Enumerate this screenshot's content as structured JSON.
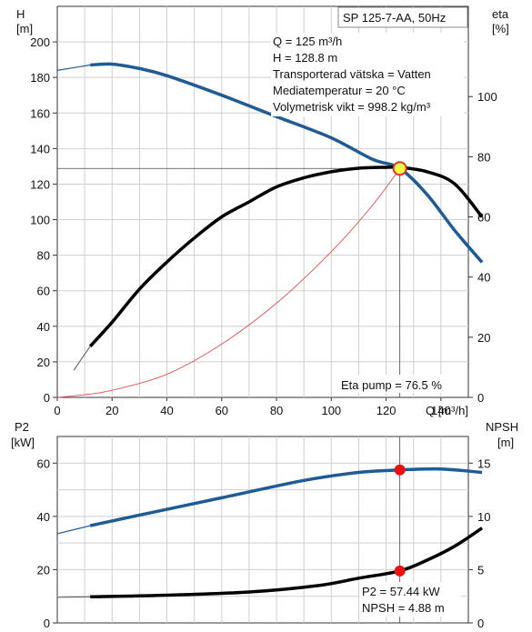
{
  "top_chart": {
    "left_axis": {
      "name": "H",
      "unit": "[m]",
      "ticks": [
        "0",
        "20",
        "40",
        "60",
        "80",
        "100",
        "120",
        "140",
        "160",
        "180",
        "200"
      ]
    },
    "right_axis": {
      "name": "eta",
      "unit": "[%]",
      "ticks": [
        "0",
        "20",
        "40",
        "60",
        "80",
        "100"
      ]
    },
    "x_axis": {
      "label": "Q [m³/h]",
      "ticks": [
        "0",
        "20",
        "40",
        "60",
        "80",
        "100",
        "120",
        "140"
      ]
    },
    "title_box": "SP 125-7-AA, 50Hz",
    "info_lines": [
      "Q = 125 m³/h",
      "H = 128.8 m",
      "Transporterad vätska = Vatten",
      "Mediatemperatur = 20 °C",
      "Volymetrisk vikt = 998.2 kg/m³"
    ],
    "eta_note": "Eta pump = 76.5 %"
  },
  "bottom_chart": {
    "left_axis": {
      "name": "P2",
      "unit": "[kW]",
      "ticks": [
        "0",
        "20",
        "40",
        "60"
      ]
    },
    "right_axis": {
      "name": "NPSH",
      "unit": "[m]",
      "ticks": [
        "0",
        "5",
        "10",
        "15"
      ]
    },
    "info_lines": [
      "P2 = 57.44 kW",
      "NPSH = 4.88 m"
    ]
  },
  "colors": {
    "head": "#1f5b95",
    "eta": "#000000",
    "system": "#e05050",
    "p2": "#1f5b95",
    "npsh": "#000000",
    "marker": "#ee1111",
    "duty_fill": "#ffff44"
  },
  "chart_data": [
    {
      "type": "line",
      "xlabel": "Q [m³/h]",
      "ylabel": "H [m]",
      "y2label": "eta [%]",
      "xlim": [
        0,
        150
      ],
      "ylim": [
        0,
        220
      ],
      "y2lim": [
        0,
        130
      ],
      "duty_point": {
        "x": 125,
        "y": 128.8
      },
      "series": [
        {
          "axis": "y",
          "points": [
            [
              0,
              184
            ],
            [
              12,
              187
            ],
            [
              20,
              187.5
            ],
            [
              30,
              185
            ],
            [
              40,
              181
            ],
            [
              60,
              170
            ],
            [
              80,
              158
            ],
            [
              100,
              146
            ],
            [
              115,
              134
            ],
            [
              125,
              128.8
            ],
            [
              135,
              114
            ],
            [
              145,
              94
            ],
            [
              155,
              76
            ]
          ]
        },
        {
          "axis": "y",
          "points": [
            [
              0,
              0
            ],
            [
              10,
              1.5
            ],
            [
              20,
              4
            ],
            [
              40,
              13
            ],
            [
              60,
              30
            ],
            [
              80,
              53
            ],
            [
              100,
              82
            ],
            [
              115,
              108
            ],
            [
              125,
              128.8
            ]
          ]
        },
        {
          "axis": "y2",
          "points": [
            [
              6,
              9
            ],
            [
              12,
              17
            ],
            [
              20,
              25
            ],
            [
              30,
              36
            ],
            [
              40,
              45
            ],
            [
              50,
              53
            ],
            [
              60,
              60
            ],
            [
              70,
              65
            ],
            [
              80,
              70
            ],
            [
              90,
              73
            ],
            [
              100,
              75
            ],
            [
              110,
              76.2
            ],
            [
              120,
              76.5
            ],
            [
              125,
              76.5
            ],
            [
              135,
              75
            ],
            [
              145,
              71
            ],
            [
              155,
              60
            ]
          ]
        }
      ],
      "markers": [
        {
          "axis": "y2",
          "x": 125,
          "y": 76.5
        }
      ]
    },
    {
      "type": "line",
      "ylabel": "P2 [kW]",
      "y2label": "NPSH [m]",
      "xlim": [
        0,
        150
      ],
      "ylim": [
        0,
        70
      ],
      "y2lim": [
        0,
        17.5
      ],
      "series": [
        {
          "axis": "y",
          "points": [
            [
              0,
              33.5
            ],
            [
              12,
              36.5
            ],
            [
              30,
              40.5
            ],
            [
              60,
              47
            ],
            [
              90,
              53.5
            ],
            [
              110,
              56.5
            ],
            [
              125,
              57.44
            ],
            [
              140,
              57.8
            ],
            [
              155,
              56.5
            ]
          ]
        },
        {
          "axis": "y2",
          "points": [
            [
              0,
              2.4
            ],
            [
              12,
              2.45
            ],
            [
              40,
              2.6
            ],
            [
              70,
              2.9
            ],
            [
              95,
              3.5
            ],
            [
              110,
              4.2
            ],
            [
              125,
              4.88
            ],
            [
              135,
              5.9
            ],
            [
              145,
              7.2
            ],
            [
              155,
              8.9
            ]
          ]
        }
      ],
      "markers": [
        {
          "axis": "y",
          "x": 125,
          "y": 57.44
        },
        {
          "axis": "y2",
          "x": 125,
          "y": 4.88
        }
      ]
    }
  ]
}
